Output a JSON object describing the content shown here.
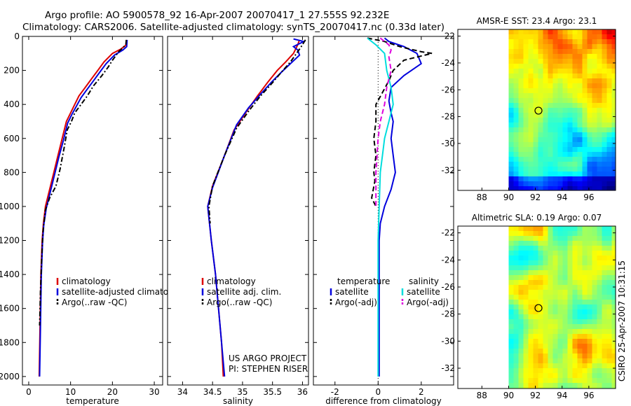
{
  "title_line1": "Argo profile: AO 5900578_92 16-Apr-2007 20070417_1 27.555S 92.232E",
  "title_line2": "Climatology: CARS2006. Satellite-adjusted climatology: synTS_20070417.nc (0.33d later)",
  "footer_left": "US ARGO PROJECT",
  "footer_right": "PI: STEPHEN RISER",
  "side_stamp": "CSIRO 25-Apr-2007 10:31:15",
  "colors": {
    "climatology": "#dd0000",
    "satellite": "#0000dd",
    "argo": "#000000",
    "sat_salinity": "#00dddd",
    "argo_salinity_diff": "#dd00dd"
  },
  "chart_data": [
    {
      "type": "line",
      "name": "temperature-panel",
      "xlabel": "temperature",
      "ylabel": "",
      "xlim": [
        -1.5,
        32
      ],
      "ylim": [
        2050,
        0
      ],
      "xticks": [
        0,
        10,
        20,
        30
      ],
      "yticks": [
        0,
        200,
        400,
        600,
        800,
        1000,
        1200,
        1400,
        1600,
        1800,
        2000
      ],
      "legend": [
        "climatology",
        "satellite-adjusted climatology",
        "Argo(..raw -QC)"
      ],
      "series": [
        {
          "name": "climatology",
          "color": "#dd0000",
          "style": "solid",
          "x": [
            23.4,
            23.3,
            22,
            20,
            18,
            16.5,
            15,
            13.5,
            12,
            11,
            10,
            9,
            8,
            7,
            6,
            5,
            4,
            3.5,
            3.2,
            2.9,
            2.7,
            2.5
          ],
          "y": [
            20,
            50,
            75,
            100,
            150,
            200,
            250,
            300,
            350,
            400,
            450,
            500,
            600,
            700,
            800,
            900,
            1000,
            1100,
            1200,
            1400,
            1700,
            2000
          ]
        },
        {
          "name": "satellite",
          "color": "#0000dd",
          "style": "solid",
          "x": [
            23.5,
            23.4,
            22.5,
            20.5,
            18.5,
            17,
            15.5,
            14,
            12.5,
            11.4,
            10.3,
            9.3,
            8.3,
            7.2,
            6.2,
            5.2,
            4.2,
            3.6,
            3.3,
            3,
            2.8,
            2.6
          ],
          "y": [
            20,
            60,
            80,
            110,
            160,
            210,
            260,
            310,
            360,
            410,
            460,
            510,
            610,
            710,
            810,
            910,
            1010,
            1110,
            1210,
            1410,
            1710,
            2000
          ]
        },
        {
          "name": "Argo",
          "color": "#000000",
          "style": "dash-dot",
          "x": [
            23.3,
            23.2,
            21.5,
            20,
            19,
            17.5,
            15.5,
            14,
            12.5,
            11,
            10.2,
            9.2,
            8.5,
            7.5,
            6.5,
            5,
            4,
            3.4,
            3.1,
            2.8,
            2.6
          ],
          "y": [
            20,
            50,
            90,
            140,
            180,
            230,
            290,
            350,
            400,
            450,
            500,
            550,
            650,
            780,
            880,
            950,
            1020,
            1150,
            1300,
            1500,
            1700
          ]
        }
      ]
    },
    {
      "type": "line",
      "name": "salinity-panel",
      "xlabel": "salinity",
      "ylabel": "",
      "xlim": [
        33.75,
        36.1
      ],
      "ylim": [
        2050,
        0
      ],
      "xticks": [
        34,
        34.5,
        35,
        35.5,
        36
      ],
      "legend": [
        "climatology",
        "satellite adj. clim.",
        "Argo(..raw -QC)"
      ],
      "series": [
        {
          "name": "climatology",
          "color": "#dd0000",
          "style": "solid",
          "x": [
            35.95,
            35.92,
            35.85,
            35.72,
            35.58,
            35.42,
            35.25,
            35.05,
            34.86,
            34.7,
            34.5,
            34.42,
            34.48,
            34.55,
            34.6,
            34.65,
            34.68
          ],
          "y": [
            20,
            50,
            100,
            150,
            200,
            270,
            350,
            450,
            550,
            700,
            880,
            1000,
            1200,
            1400,
            1600,
            1800,
            2000
          ]
        },
        {
          "name": "satellite",
          "color": "#0000dd",
          "style": "solid",
          "x": [
            35.85,
            36.02,
            35.85,
            35.92,
            35.95,
            35.8,
            35.65,
            35.48,
            35.3,
            35.1,
            34.9,
            34.7,
            34.5,
            34.42,
            34.48,
            34.55,
            34.6,
            34.65,
            34.7
          ],
          "y": [
            15,
            30,
            60,
            80,
            110,
            160,
            210,
            270,
            340,
            420,
            520,
            700,
            890,
            1000,
            1200,
            1400,
            1600,
            1800,
            2000
          ]
        },
        {
          "name": "Argo",
          "color": "#000000",
          "style": "dash-dot",
          "x": [
            36.05,
            35.98,
            35.9,
            35.8,
            35.65,
            35.48,
            35.3,
            35.1,
            34.9,
            34.7,
            34.5,
            34.44,
            34.46
          ],
          "y": [
            20,
            60,
            100,
            150,
            210,
            280,
            350,
            440,
            540,
            700,
            880,
            1000,
            1100
          ]
        }
      ]
    },
    {
      "type": "line",
      "name": "difference-panel",
      "xlabel": "difference from climatology",
      "ylabel": "",
      "xlim": [
        -3,
        3.5
      ],
      "ylim": [
        2050,
        0
      ],
      "xticks": [
        -2,
        0,
        2
      ],
      "legend": [
        "temperature",
        "satellite",
        "Argo(-adj)",
        "salinity",
        "satellite",
        "Argo(-adj)"
      ],
      "series": [
        {
          "name": "temperature satellite",
          "color": "#0000dd",
          "style": "solid",
          "x": [
            0.3,
            0.5,
            1.2,
            1.8,
            2.0,
            1.2,
            0.6,
            0.5,
            0.6,
            0.7,
            0.6,
            0.7,
            0.8,
            0.6,
            0.3,
            0.1,
            0.05,
            0.05,
            0.05,
            0.05
          ],
          "y": [
            10,
            30,
            60,
            100,
            160,
            230,
            300,
            380,
            450,
            500,
            600,
            700,
            800,
            900,
            1000,
            1100,
            1200,
            1400,
            1700,
            2000
          ]
        },
        {
          "name": "temperature Argo",
          "color": "#000000",
          "style": "dashed",
          "x": [
            -0.5,
            0.3,
            1.0,
            2.0,
            2.5,
            1.2,
            0.7,
            0.5,
            0.2,
            -0.1,
            -0.1,
            -0.2,
            -0.1,
            -0.2,
            -0.15,
            -0.3,
            -0.1
          ],
          "y": [
            10,
            30,
            60,
            90,
            100,
            140,
            200,
            260,
            330,
            400,
            500,
            600,
            700,
            800,
            850,
            950,
            1000
          ]
        },
        {
          "name": "salinity satellite",
          "color": "#00dddd",
          "style": "solid",
          "x": [
            -0.5,
            -0.1,
            0.3,
            0.4,
            0.6,
            0.7,
            0.5,
            0.3,
            0.2,
            0.1,
            0.05,
            0.0,
            0.0,
            0.0,
            0.0
          ],
          "y": [
            10,
            50,
            100,
            200,
            300,
            400,
            500,
            600,
            700,
            800,
            1000,
            1200,
            1400,
            1700,
            2000
          ]
        },
        {
          "name": "salinity Argo",
          "color": "#dd00dd",
          "style": "dashed",
          "x": [
            0.1,
            0.5,
            0.6,
            0.5,
            0.6,
            0.4,
            0.3,
            0.1,
            0.0,
            -0.1,
            -0.1
          ],
          "y": [
            10,
            50,
            80,
            120,
            200,
            300,
            400,
            500,
            600,
            800,
            1000
          ]
        }
      ]
    },
    {
      "type": "heatmap",
      "name": "sst-map",
      "title": "AMSR-E SST: 23.4 Argo: 23.1",
      "xlim": [
        86.2,
        98
      ],
      "ylim": [
        -33.5,
        -21.5
      ],
      "xticks": [
        88,
        90,
        92,
        94,
        96
      ],
      "yticks": [
        -22,
        -24,
        -26,
        -28,
        -30,
        -32
      ],
      "data_xlim": [
        90,
        98
      ],
      "marker": {
        "lon": 92.232,
        "lat": -27.555
      }
    },
    {
      "type": "heatmap",
      "name": "sla-map",
      "title": "Altimetric SLA: 0.19 Argo: 0.07",
      "xlim": [
        86.2,
        98
      ],
      "ylim": [
        -33.5,
        -21.5
      ],
      "xticks": [
        88,
        90,
        92,
        94,
        96
      ],
      "yticks": [
        -22,
        -24,
        -26,
        -28,
        -30,
        -32
      ],
      "data_xlim": [
        90,
        98
      ],
      "marker": {
        "lon": 92.232,
        "lat": -27.555
      }
    }
  ]
}
